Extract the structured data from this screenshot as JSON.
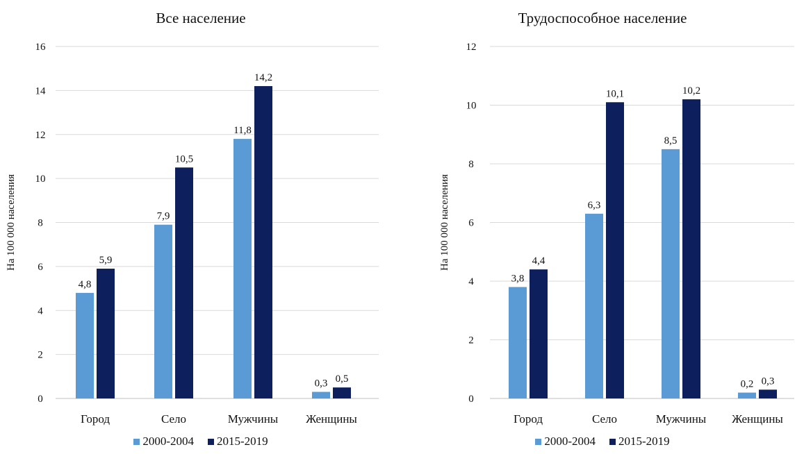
{
  "chart_data": [
    {
      "type": "bar",
      "title": "Все население",
      "ylabel": "На 100 000 населения",
      "ylim": [
        0,
        16
      ],
      "yticks": [
        "0",
        "2",
        "4",
        "6",
        "8",
        "10",
        "12",
        "14",
        "16"
      ],
      "grid": true,
      "legend_position": "bottom",
      "categories": [
        "Город",
        "Село",
        "Мужчины",
        "Женщины"
      ],
      "series": [
        {
          "name": "2000-2004",
          "color": "#5b9bd5",
          "values": [
            4.8,
            7.9,
            11.8,
            0.3
          ],
          "labels": [
            "4,8",
            "7,9",
            "11,8",
            "0,3"
          ]
        },
        {
          "name": "2015-2019",
          "color": "#0d1f5c",
          "values": [
            5.9,
            10.5,
            14.2,
            0.5
          ],
          "labels": [
            "5,9",
            "10,5",
            "14,2",
            "0,5"
          ]
        }
      ]
    },
    {
      "type": "bar",
      "title": "Трудоспособное население",
      "ylabel": "На 100 000 населения",
      "ylim": [
        0,
        12
      ],
      "yticks": [
        "0",
        "2",
        "4",
        "6",
        "8",
        "10",
        "12"
      ],
      "grid": true,
      "legend_position": "bottom",
      "categories": [
        "Город",
        "Село",
        "Мужчины",
        "Женщины"
      ],
      "series": [
        {
          "name": "2000-2004",
          "color": "#5b9bd5",
          "values": [
            3.8,
            6.3,
            8.5,
            0.2
          ],
          "labels": [
            "3,8",
            "6,3",
            "8,5",
            "0,2"
          ]
        },
        {
          "name": "2015-2019",
          "color": "#0d1f5c",
          "values": [
            4.4,
            10.1,
            10.2,
            0.3
          ],
          "labels": [
            "4,4",
            "10,1",
            "10,2",
            "0,3"
          ]
        }
      ]
    }
  ]
}
